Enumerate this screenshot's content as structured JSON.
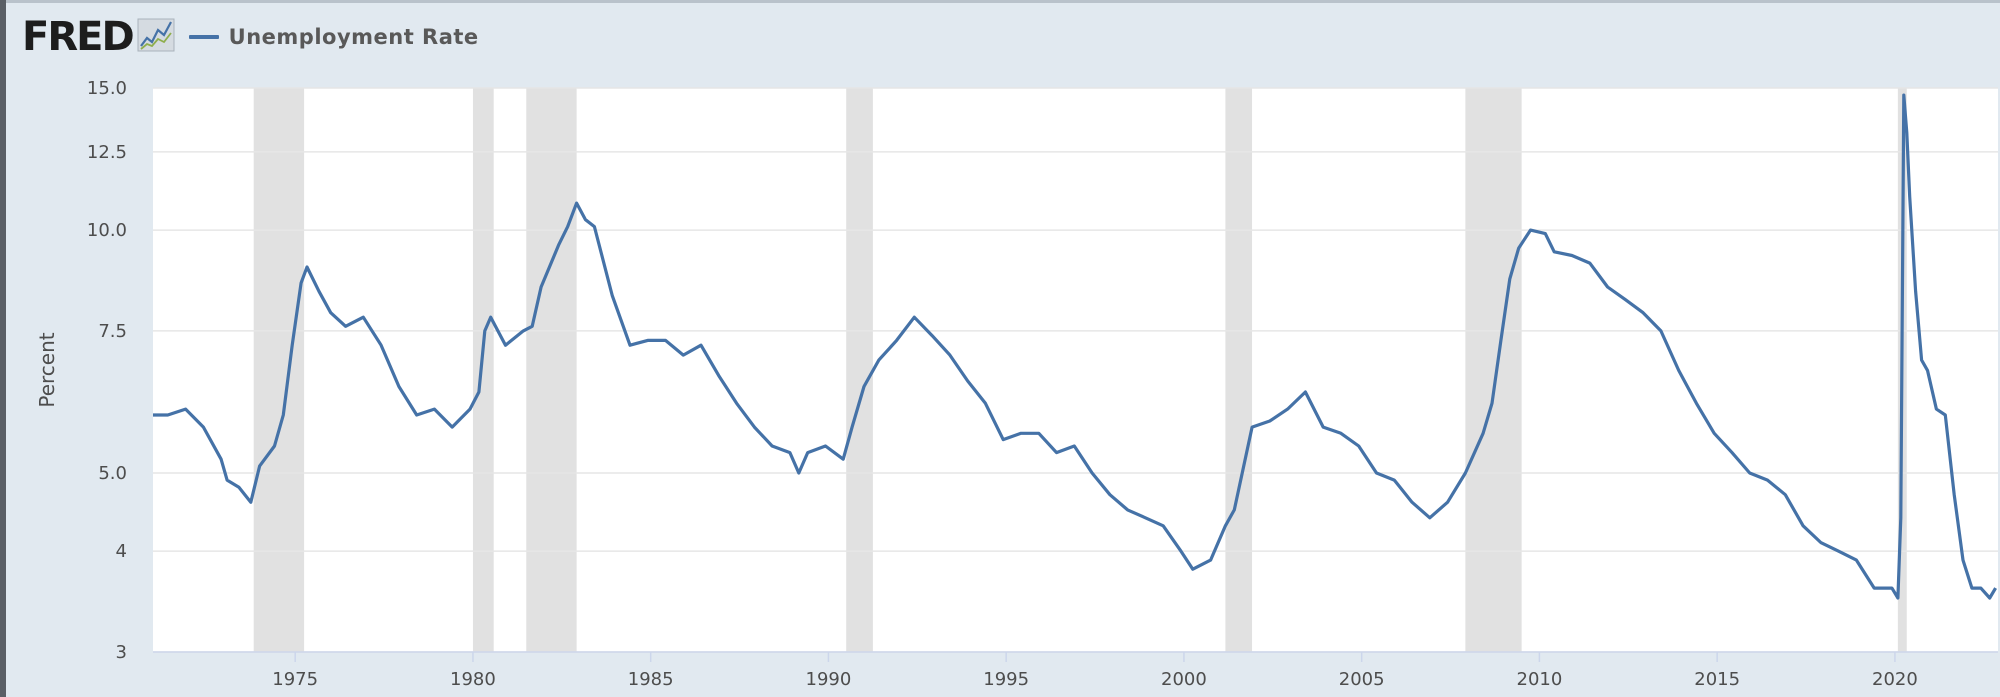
{
  "header": {
    "logo_text": "FRED",
    "logo_icon": "line-chart-icon",
    "legend_label": "Unemployment Rate"
  },
  "colors": {
    "series": "#4572a7",
    "recession": "#e1e1e1",
    "grid": "#e6e6e6",
    "background": "#e1e9f0",
    "plot": "#ffffff"
  },
  "chart_data": {
    "type": "line",
    "title": "",
    "xlabel": "",
    "ylabel": "Percent",
    "y_scale": "log",
    "ylim": [
      3,
      15
    ],
    "xlim": [
      1971.0,
      2022.9
    ],
    "grid": true,
    "legend_placement": "top-left",
    "y_ticks": [
      3,
      4,
      5,
      7.5,
      10,
      12.5,
      15
    ],
    "y_tick_labels": [
      "3",
      "4",
      "5.0",
      "7.5",
      "10.0",
      "12.5",
      "15.0"
    ],
    "x_ticks": [
      1975,
      1980,
      1985,
      1990,
      1995,
      2000,
      2005,
      2010,
      2015,
      2020
    ],
    "x_tick_labels": [
      "1975",
      "1980",
      "1985",
      "1990",
      "1995",
      "2000",
      "2005",
      "2010",
      "2015",
      "2020"
    ],
    "recessions": [
      {
        "start": "1973-11",
        "end": "1975-03"
      },
      {
        "start": "1980-01",
        "end": "1980-07"
      },
      {
        "start": "1981-07",
        "end": "1982-11"
      },
      {
        "start": "1990-07",
        "end": "1991-03"
      },
      {
        "start": "2001-03",
        "end": "2001-11"
      },
      {
        "start": "2007-12",
        "end": "2009-06"
      },
      {
        "start": "2020-02",
        "end": "2020-04"
      }
    ],
    "series": [
      {
        "name": "Unemployment Rate",
        "points": [
          [
            "1971-01",
            5.9
          ],
          [
            "1971-06",
            5.9
          ],
          [
            "1971-12",
            6.0
          ],
          [
            "1972-06",
            5.7
          ],
          [
            "1972-12",
            5.2
          ],
          [
            "1973-02",
            4.9
          ],
          [
            "1973-06",
            4.8
          ],
          [
            "1973-10",
            4.6
          ],
          [
            "1974-01",
            5.1
          ],
          [
            "1974-06",
            5.4
          ],
          [
            "1974-09",
            5.9
          ],
          [
            "1974-12",
            7.2
          ],
          [
            "1975-03",
            8.6
          ],
          [
            "1975-05",
            9.0
          ],
          [
            "1975-09",
            8.4
          ],
          [
            "1976-01",
            7.9
          ],
          [
            "1976-06",
            7.6
          ],
          [
            "1976-12",
            7.8
          ],
          [
            "1977-06",
            7.2
          ],
          [
            "1977-12",
            6.4
          ],
          [
            "1978-06",
            5.9
          ],
          [
            "1978-12",
            6.0
          ],
          [
            "1979-06",
            5.7
          ],
          [
            "1979-12",
            6.0
          ],
          [
            "1980-03",
            6.3
          ],
          [
            "1980-05",
            7.5
          ],
          [
            "1980-07",
            7.8
          ],
          [
            "1980-12",
            7.2
          ],
          [
            "1981-06",
            7.5
          ],
          [
            "1981-09",
            7.6
          ],
          [
            "1981-12",
            8.5
          ],
          [
            "1982-06",
            9.6
          ],
          [
            "1982-09",
            10.1
          ],
          [
            "1982-12",
            10.8
          ],
          [
            "1983-03",
            10.3
          ],
          [
            "1983-06",
            10.1
          ],
          [
            "1983-12",
            8.3
          ],
          [
            "1984-06",
            7.2
          ],
          [
            "1984-12",
            7.3
          ],
          [
            "1985-06",
            7.3
          ],
          [
            "1985-12",
            7.0
          ],
          [
            "1986-06",
            7.2
          ],
          [
            "1986-12",
            6.6
          ],
          [
            "1987-06",
            6.1
          ],
          [
            "1987-12",
            5.7
          ],
          [
            "1988-06",
            5.4
          ],
          [
            "1988-12",
            5.3
          ],
          [
            "1989-03",
            5.0
          ],
          [
            "1989-06",
            5.3
          ],
          [
            "1989-12",
            5.4
          ],
          [
            "1990-06",
            5.2
          ],
          [
            "1990-09",
            5.7
          ],
          [
            "1991-01",
            6.4
          ],
          [
            "1991-06",
            6.9
          ],
          [
            "1991-12",
            7.3
          ],
          [
            "1992-06",
            7.8
          ],
          [
            "1992-12",
            7.4
          ],
          [
            "1993-06",
            7.0
          ],
          [
            "1993-12",
            6.5
          ],
          [
            "1994-06",
            6.1
          ],
          [
            "1994-12",
            5.5
          ],
          [
            "1995-06",
            5.6
          ],
          [
            "1995-12",
            5.6
          ],
          [
            "1996-06",
            5.3
          ],
          [
            "1996-12",
            5.4
          ],
          [
            "1997-06",
            5.0
          ],
          [
            "1997-12",
            4.7
          ],
          [
            "1998-06",
            4.5
          ],
          [
            "1998-12",
            4.4
          ],
          [
            "1999-06",
            4.3
          ],
          [
            "1999-12",
            4.0
          ],
          [
            "2000-04",
            3.8
          ],
          [
            "2000-10",
            3.9
          ],
          [
            "2001-03",
            4.3
          ],
          [
            "2001-06",
            4.5
          ],
          [
            "2001-12",
            5.7
          ],
          [
            "2002-06",
            5.8
          ],
          [
            "2002-12",
            6.0
          ],
          [
            "2003-06",
            6.3
          ],
          [
            "2003-12",
            5.7
          ],
          [
            "2004-06",
            5.6
          ],
          [
            "2004-12",
            5.4
          ],
          [
            "2005-06",
            5.0
          ],
          [
            "2005-12",
            4.9
          ],
          [
            "2006-06",
            4.6
          ],
          [
            "2006-12",
            4.4
          ],
          [
            "2007-06",
            4.6
          ],
          [
            "2007-12",
            5.0
          ],
          [
            "2008-06",
            5.6
          ],
          [
            "2008-09",
            6.1
          ],
          [
            "2008-12",
            7.3
          ],
          [
            "2009-03",
            8.7
          ],
          [
            "2009-06",
            9.5
          ],
          [
            "2009-10",
            10.0
          ],
          [
            "2010-03",
            9.9
          ],
          [
            "2010-06",
            9.4
          ],
          [
            "2010-12",
            9.3
          ],
          [
            "2011-06",
            9.1
          ],
          [
            "2011-12",
            8.5
          ],
          [
            "2012-06",
            8.2
          ],
          [
            "2012-12",
            7.9
          ],
          [
            "2013-06",
            7.5
          ],
          [
            "2013-12",
            6.7
          ],
          [
            "2014-06",
            6.1
          ],
          [
            "2014-12",
            5.6
          ],
          [
            "2015-06",
            5.3
          ],
          [
            "2015-12",
            5.0
          ],
          [
            "2016-06",
            4.9
          ],
          [
            "2016-12",
            4.7
          ],
          [
            "2017-06",
            4.3
          ],
          [
            "2017-12",
            4.1
          ],
          [
            "2018-06",
            4.0
          ],
          [
            "2018-12",
            3.9
          ],
          [
            "2019-06",
            3.6
          ],
          [
            "2019-12",
            3.6
          ],
          [
            "2020-02",
            3.5
          ],
          [
            "2020-03",
            4.4
          ],
          [
            "2020-04",
            14.7
          ],
          [
            "2020-05",
            13.2
          ],
          [
            "2020-06",
            11.0
          ],
          [
            "2020-08",
            8.4
          ],
          [
            "2020-10",
            6.9
          ],
          [
            "2020-12",
            6.7
          ],
          [
            "2021-03",
            6.0
          ],
          [
            "2021-06",
            5.9
          ],
          [
            "2021-09",
            4.7
          ],
          [
            "2021-12",
            3.9
          ],
          [
            "2022-03",
            3.6
          ],
          [
            "2022-06",
            3.6
          ],
          [
            "2022-09",
            3.5
          ],
          [
            "2022-11",
            3.6
          ]
        ]
      }
    ]
  }
}
